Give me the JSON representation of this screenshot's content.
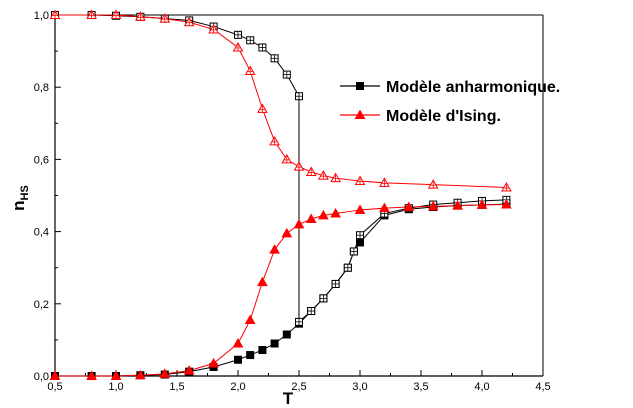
{
  "chart_data": {
    "type": "line",
    "xlabel": "T",
    "ylabel": "n",
    "ylabel_sub": "HS",
    "xlim": [
      0.5,
      4.5
    ],
    "ylim": [
      0.0,
      1.0
    ],
    "xticks": [
      "0,5",
      "1,0",
      "1,5",
      "2,0",
      "2,5",
      "3,0",
      "3,5",
      "4,0",
      "4,5"
    ],
    "yticks": [
      "0,0",
      "0,2",
      "0,4",
      "0,6",
      "0,8",
      "1,0"
    ],
    "grid": false,
    "legend_position": "top-right",
    "colors": {
      "anharmonic": "#000000",
      "ising": "#ff0000"
    },
    "series": [
      {
        "name": "Modèle anharmonique.",
        "marker": "filled-square",
        "color": "#000000",
        "x": [
          0.5,
          0.8,
          1.0,
          1.2,
          1.4,
          1.6,
          1.8,
          2.0,
          2.1,
          2.2,
          2.3,
          2.4,
          2.5,
          2.6,
          2.7,
          2.8,
          2.9,
          2.95,
          3.0,
          3.2,
          3.4,
          3.6,
          3.8,
          4.0,
          4.2
        ],
        "y": [
          0.0,
          0.0,
          0.0,
          0.002,
          0.004,
          0.012,
          0.025,
          0.045,
          0.058,
          0.072,
          0.09,
          0.115,
          0.145,
          0.18,
          0.215,
          0.255,
          0.3,
          0.345,
          0.37,
          0.445,
          0.462,
          0.468,
          0.472,
          0.474,
          0.476
        ]
      },
      {
        "name": "Modèle anharmonique.",
        "marker": "open-square",
        "color": "#000000",
        "x": [
          0.5,
          0.8,
          1.0,
          1.2,
          1.4,
          1.6,
          1.8,
          2.0,
          2.1,
          2.2,
          2.3,
          2.4,
          2.5,
          2.5,
          2.6,
          2.7,
          2.8,
          2.9,
          2.95,
          3.0,
          3.2,
          3.4,
          3.6,
          3.8,
          4.0,
          4.2
        ],
        "y": [
          1.0,
          1.0,
          0.998,
          0.995,
          0.99,
          0.985,
          0.968,
          0.945,
          0.93,
          0.91,
          0.88,
          0.835,
          0.775,
          0.15,
          0.18,
          0.215,
          0.255,
          0.3,
          0.345,
          0.39,
          0.45,
          0.465,
          0.475,
          0.48,
          0.485,
          0.488
        ]
      },
      {
        "name": "Modèle d'Ising.",
        "marker": "filled-triangle",
        "color": "#ff0000",
        "x": [
          0.5,
          0.8,
          1.0,
          1.2,
          1.4,
          1.6,
          1.8,
          2.0,
          2.1,
          2.2,
          2.3,
          2.4,
          2.5,
          2.6,
          2.7,
          2.8,
          3.0,
          3.2,
          3.4,
          3.6,
          3.8,
          4.0,
          4.2
        ],
        "y": [
          0.0,
          0.0,
          0.0,
          0.002,
          0.006,
          0.015,
          0.035,
          0.09,
          0.155,
          0.26,
          0.35,
          0.395,
          0.42,
          0.435,
          0.445,
          0.45,
          0.46,
          0.465,
          0.468,
          0.47,
          0.472,
          0.474,
          0.475
        ]
      },
      {
        "name": "Modèle d'Ising.",
        "marker": "open-triangle",
        "color": "#ff0000",
        "x": [
          0.5,
          0.8,
          1.0,
          1.2,
          1.4,
          1.6,
          1.8,
          2.0,
          2.1,
          2.2,
          2.3,
          2.4,
          2.5,
          2.6,
          2.7,
          2.8,
          3.0,
          3.2,
          3.6,
          4.2
        ],
        "y": [
          1.0,
          1.0,
          1.0,
          0.995,
          0.99,
          0.98,
          0.96,
          0.91,
          0.845,
          0.74,
          0.65,
          0.6,
          0.58,
          0.565,
          0.555,
          0.548,
          0.54,
          0.535,
          0.53,
          0.522
        ]
      }
    ],
    "legend": [
      {
        "label": "Modèle anharmonique.",
        "marker": "filled-square",
        "color": "#000000"
      },
      {
        "label": "Modèle d'Ising.",
        "marker": "filled-triangle",
        "color": "#ff0000"
      }
    ]
  }
}
